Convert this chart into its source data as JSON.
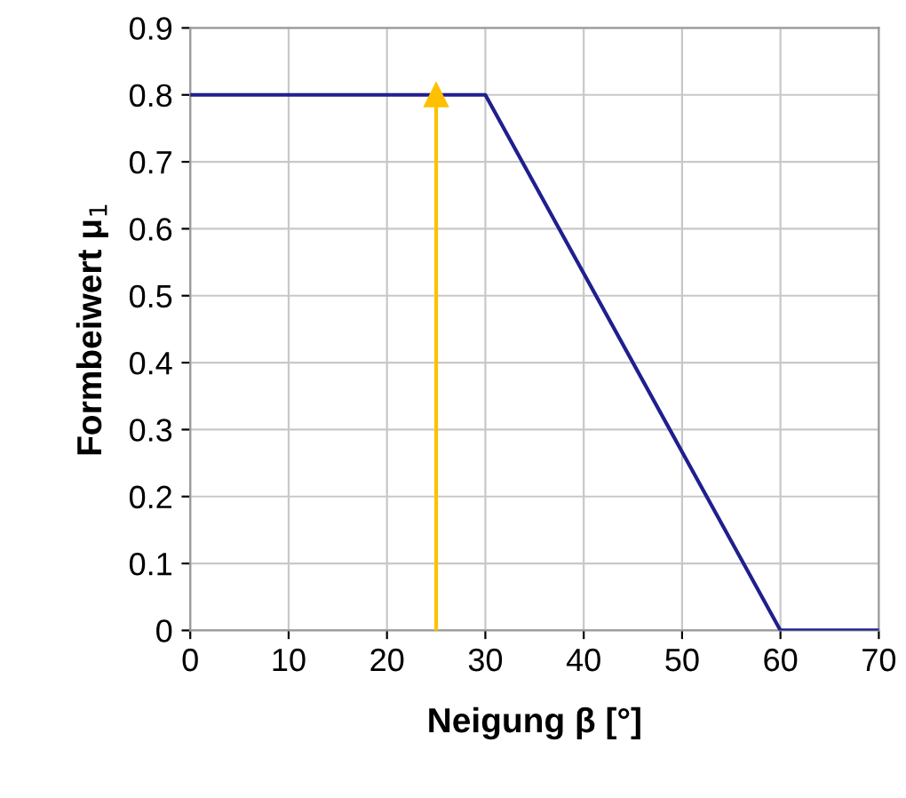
{
  "chart_data": {
    "type": "line",
    "xlabel": "Neigung β [°]",
    "ylabel": "Formbeiwert μ$_{1}$",
    "series": [
      {
        "color": "#1f1f8f",
        "x": [
          0,
          30,
          60,
          70
        ],
        "values": [
          0.8,
          0.8,
          0,
          0
        ]
      },
      {
        "color": "#ffc000",
        "x": [
          25,
          25
        ],
        "values": [
          0,
          0.8
        ],
        "marker": "triangle"
      }
    ],
    "xlim": [
      0,
      70
    ],
    "xticks": [
      0,
      10,
      20,
      30,
      40,
      50,
      60,
      70
    ],
    "ylim": [
      0,
      0.9
    ],
    "yticks": [
      0,
      0.1,
      0.2,
      0.3,
      0.4,
      0.5,
      0.6,
      0.7,
      0.8,
      0.9
    ],
    "grid": true
  }
}
